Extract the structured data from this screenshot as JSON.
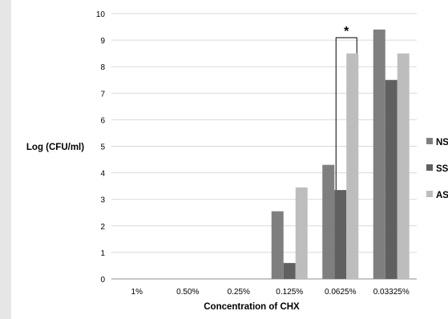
{
  "chart_data": {
    "type": "bar",
    "categories": [
      "1%",
      "0.50%",
      "0.25%",
      "0.125%",
      "0.0625%",
      "0.03325%"
    ],
    "series": [
      {
        "name": "NS",
        "color": "#7f7f7f",
        "values": [
          0,
          0,
          0,
          2.55,
          4.3,
          9.4
        ]
      },
      {
        "name": "SS",
        "color": "#606060",
        "values": [
          0,
          0,
          0,
          0.6,
          3.35,
          7.5
        ]
      },
      {
        "name": "AS",
        "color": "#bdbdbd",
        "values": [
          0,
          0,
          0,
          3.45,
          8.5,
          8.5
        ]
      }
    ],
    "xlabel": "Concentration of CHX",
    "ylabel": "Log (CFU/ml)",
    "ylim": [
      0,
      10
    ],
    "yticks": [
      "0",
      "1",
      "2",
      "3",
      "4",
      "5",
      "6",
      "7",
      "8",
      "9",
      "10"
    ],
    "grid": true,
    "legend_position": "right",
    "annotations": [
      {
        "text": "*",
        "category": "0.0625%",
        "from_series": "SS",
        "to_series": "AS"
      }
    ]
  }
}
